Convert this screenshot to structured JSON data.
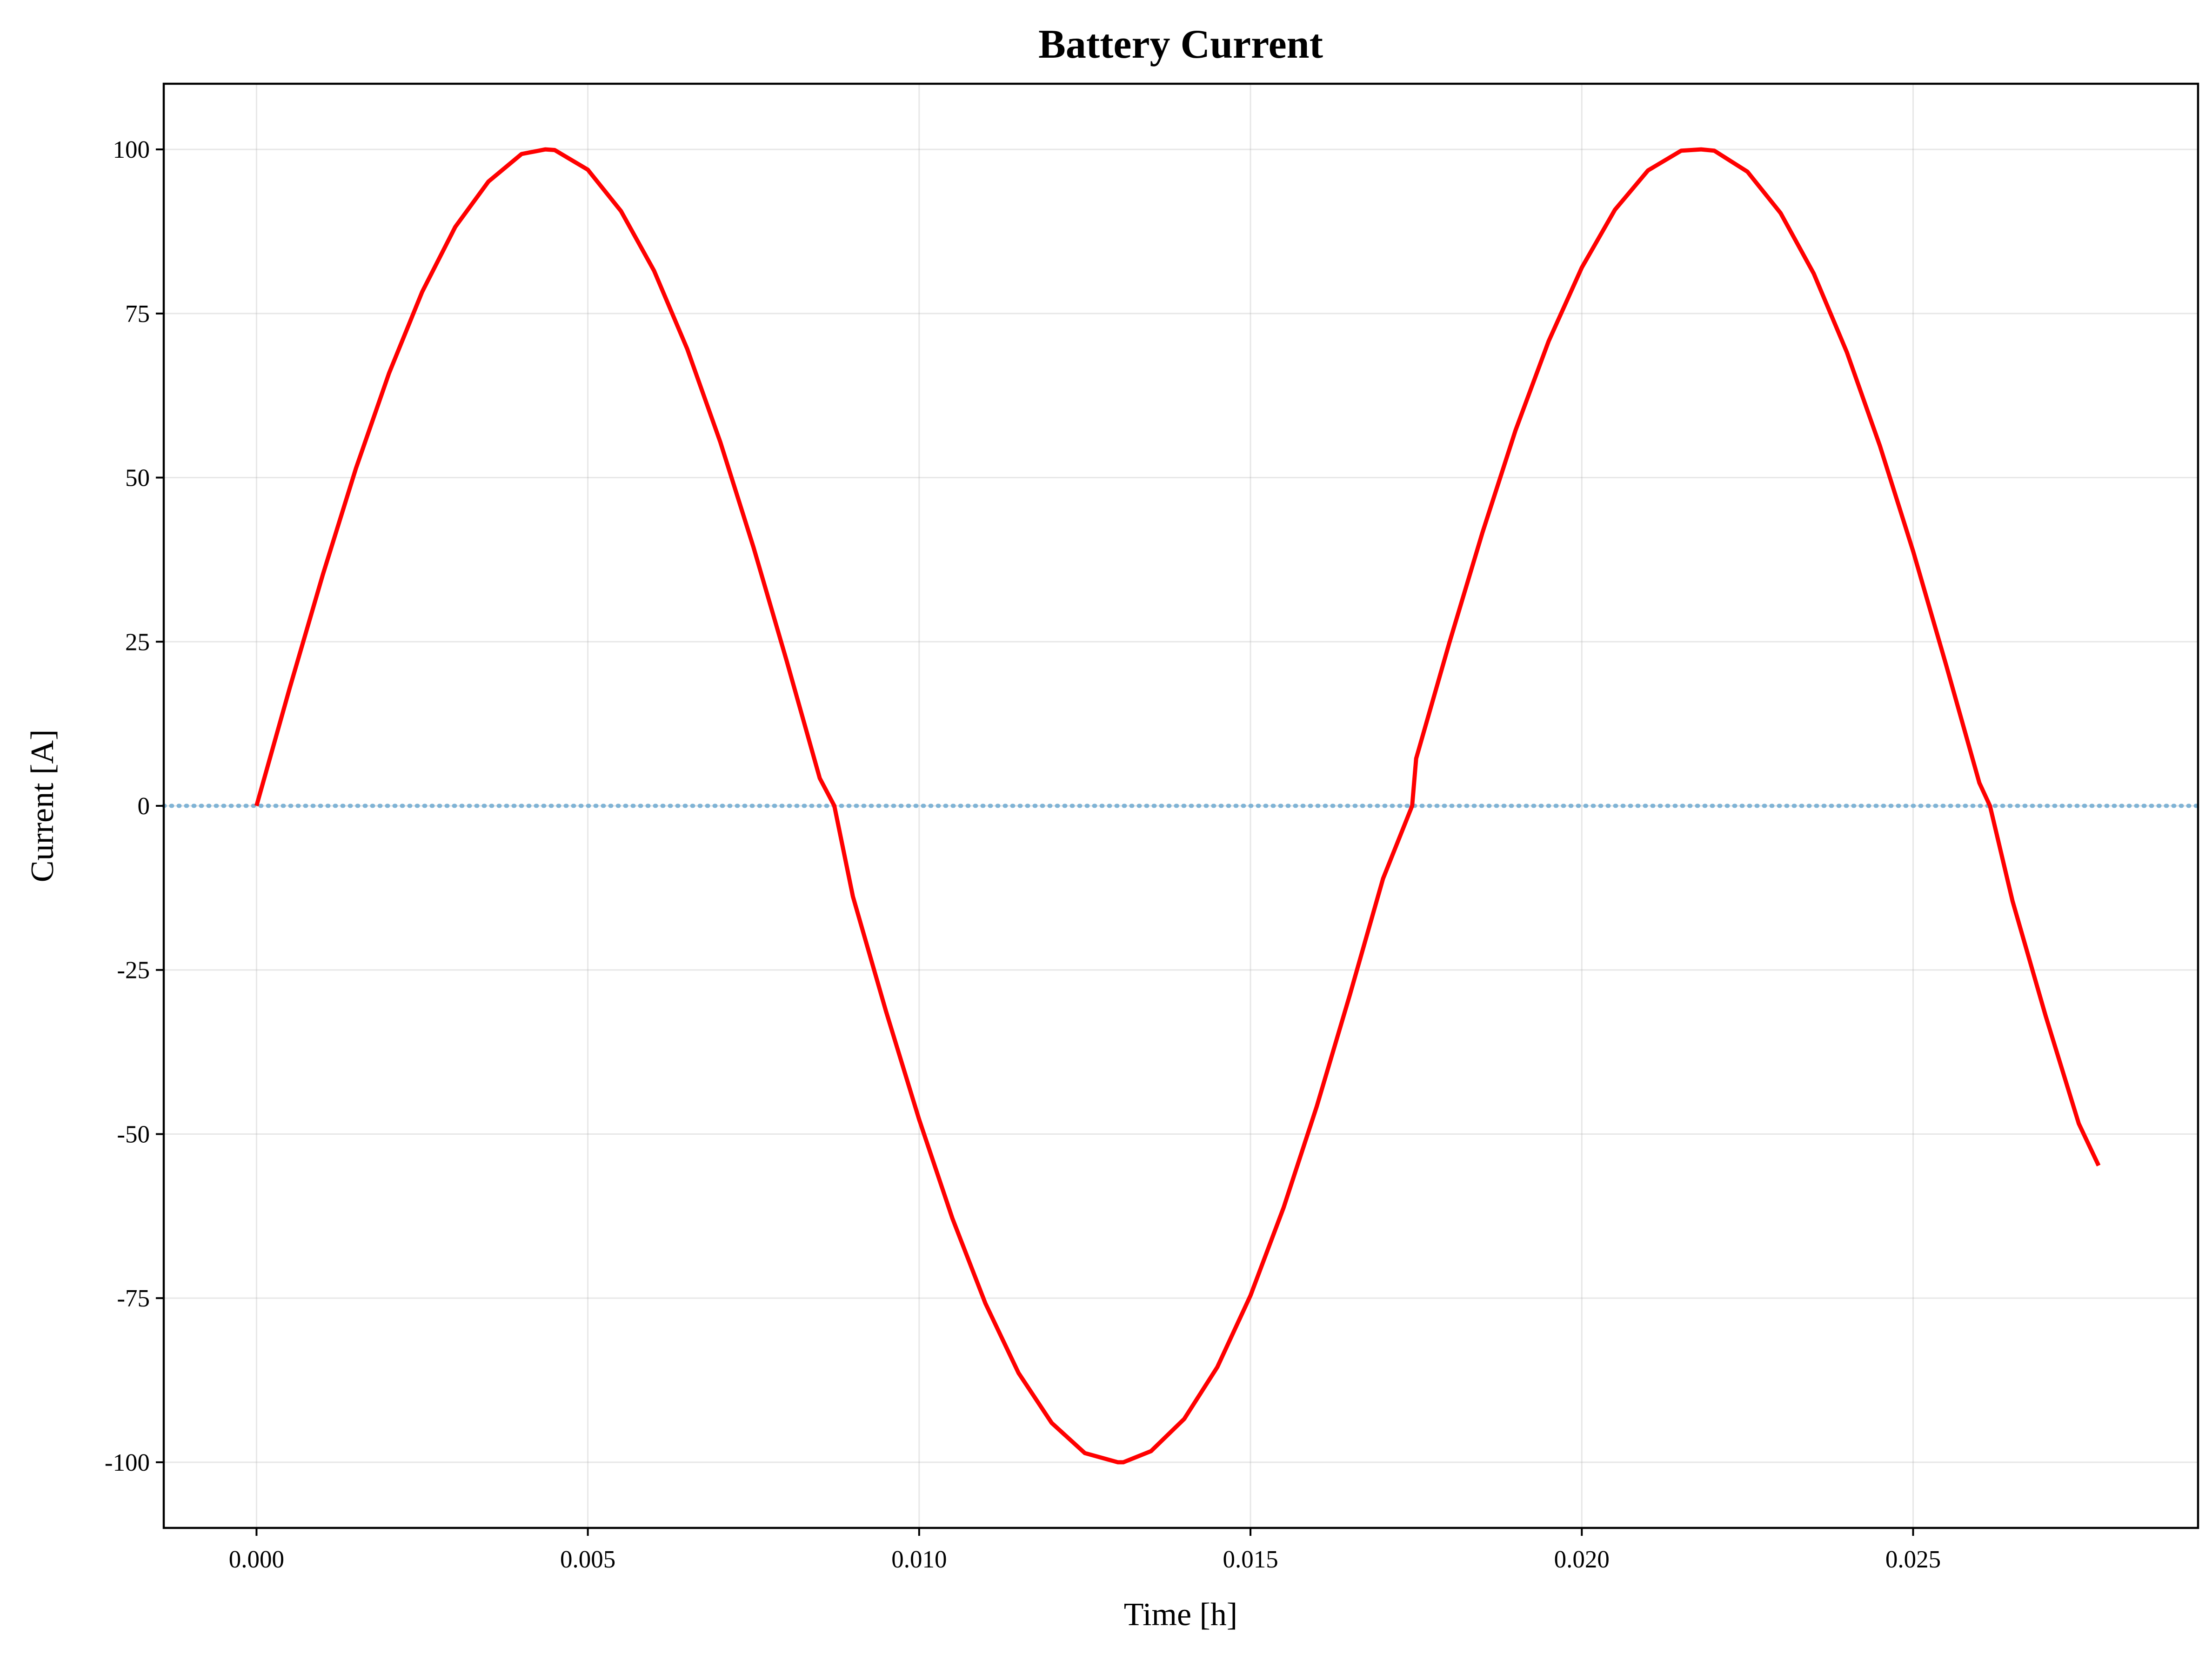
{
  "chart_data": {
    "type": "line",
    "title": "Battery Current",
    "xlabel": "Time [h]",
    "ylabel": "Current [A]",
    "xlim": [
      -0.0014,
      0.0293
    ],
    "ylim": [
      -110,
      110
    ],
    "xticks": [
      0.0,
      0.005,
      0.01,
      0.015,
      0.02,
      0.025
    ],
    "xtick_labels": [
      "0.000",
      "0.005",
      "0.010",
      "0.015",
      "0.020",
      "0.025"
    ],
    "yticks": [
      100,
      75,
      50,
      25,
      0,
      -25,
      -50,
      -75,
      -100
    ],
    "ytick_labels": [
      "100",
      "75",
      "50",
      "25",
      "0",
      "-25",
      "-50",
      "-75",
      "-100"
    ],
    "grid": true,
    "legend": "none",
    "reference_line": {
      "y": 0,
      "style": "dotted",
      "color": "#7fb3d5"
    },
    "series": [
      {
        "color": "#ff0000",
        "x": [
          0.0,
          0.0005,
          0.001,
          0.0015,
          0.002,
          0.0025,
          0.003,
          0.0035,
          0.004,
          0.00436,
          0.0045,
          0.005,
          0.0055,
          0.006,
          0.0065,
          0.007,
          0.0075,
          0.008,
          0.0085,
          0.00872,
          0.009,
          0.0095,
          0.01,
          0.0105,
          0.011,
          0.0115,
          0.012,
          0.0125,
          0.013,
          0.01308,
          0.0135,
          0.014,
          0.0145,
          0.015,
          0.0155,
          0.016,
          0.0165,
          0.017,
          0.01744,
          0.0175,
          0.018,
          0.0185,
          0.019,
          0.0195,
          0.02,
          0.0205,
          0.021,
          0.0215,
          0.0218,
          0.022,
          0.0225,
          0.023,
          0.0235,
          0.024,
          0.0245,
          0.025,
          0.0255,
          0.026,
          0.02616,
          0.0265,
          0.027,
          0.0275,
          0.0278
        ],
        "y": [
          0.0,
          17.9,
          35.2,
          51.4,
          65.9,
          78.3,
          88.2,
          95.1,
          99.3,
          100.0,
          99.9,
          96.9,
          90.6,
          81.5,
          69.6,
          55.4,
          39.4,
          22.1,
          4.2,
          0.0,
          -13.8,
          -31.3,
          -47.8,
          -62.8,
          -75.8,
          -86.4,
          -94.0,
          -98.6,
          -100.0,
          -100.0,
          -98.3,
          -93.4,
          -85.5,
          -74.6,
          -61.2,
          -45.8,
          -28.8,
          -11.1,
          0.0,
          7.2,
          24.8,
          41.6,
          57.2,
          70.8,
          82.0,
          90.8,
          96.8,
          99.8,
          100.0,
          99.8,
          96.6,
          90.3,
          81.1,
          69.1,
          54.8,
          38.8,
          21.4,
          3.5,
          0.0,
          -14.5,
          -32.0,
          -48.4,
          -54.8
        ]
      }
    ]
  }
}
